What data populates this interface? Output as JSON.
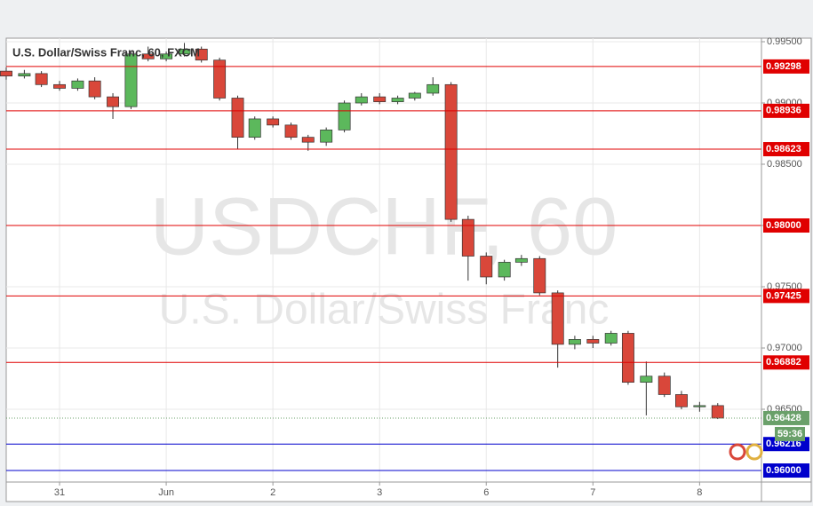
{
  "chart_data": {
    "type": "candlestick",
    "title": "U.S. Dollar/Swiss Franc, 60, FXCM",
    "watermark": "USDCHF, 60",
    "watermark_subtitle": "U.S. Dollar/Swiss Franc",
    "xlim": [
      -0.5,
      6.58
    ],
    "xticks": [
      {
        "value": 0,
        "label": "31"
      },
      {
        "value": 1,
        "label": "Jun"
      },
      {
        "value": 2,
        "label": "2"
      },
      {
        "value": 3,
        "label": "3"
      },
      {
        "value": 4,
        "label": "6"
      },
      {
        "value": 5,
        "label": "7"
      },
      {
        "value": 6,
        "label": "8"
      }
    ],
    "ylim": [
      0.95906,
      0.99529
    ],
    "yticks": [
      {
        "value": 0.995,
        "label": "0.99500"
      },
      {
        "value": 0.99,
        "label": "0.99000"
      },
      {
        "value": 0.985,
        "label": "0.98500"
      },
      {
        "value": 0.98,
        "label": "0.98000"
      },
      {
        "value": 0.975,
        "label": "0.97500"
      },
      {
        "value": 0.97,
        "label": "0.97000"
      },
      {
        "value": 0.965,
        "label": "0.96500"
      }
    ],
    "grid": true,
    "up_color": "#5cb85c",
    "down_color": "#d9473a",
    "x": [
      -0.5,
      -0.33,
      -0.17,
      0,
      0.17,
      0.33,
      0.5,
      0.67,
      0.83,
      1,
      1.17,
      1.33,
      1.5,
      1.67,
      1.83,
      2,
      2.17,
      2.33,
      2.5,
      2.67,
      2.83,
      3,
      3.17,
      3.33,
      3.5,
      3.67,
      3.83,
      4,
      4.17,
      4.33,
      4.5,
      4.67,
      4.83,
      5,
      5.17,
      5.33,
      5.5,
      5.67,
      5.83,
      6,
      6.17
    ],
    "open": [
      0.9926,
      0.9922,
      0.9924,
      0.9915,
      0.9912,
      0.9918,
      0.9905,
      0.9897,
      0.994,
      0.9936,
      0.994,
      0.9944,
      0.9935,
      0.9904,
      0.9872,
      0.9887,
      0.9882,
      0.9872,
      0.9868,
      0.9878,
      0.99,
      0.9905,
      0.9901,
      0.9904,
      0.9908,
      0.9915,
      0.9805,
      0.9775,
      0.9758,
      0.977,
      0.9773,
      0.9745,
      0.9703,
      0.9707,
      0.9704,
      0.9712,
      0.9672,
      0.9677,
      0.9662,
      0.9652,
      0.9653
    ],
    "high": [
      0.9929,
      0.9927,
      0.9926,
      0.9918,
      0.992,
      0.9921,
      0.9908,
      0.9942,
      0.9946,
      0.9942,
      0.9949,
      0.9946,
      0.9937,
      0.9906,
      0.9889,
      0.9889,
      0.9884,
      0.9874,
      0.988,
      0.9902,
      0.9908,
      0.9908,
      0.9906,
      0.9909,
      0.9921,
      0.9917,
      0.9808,
      0.9778,
      0.9772,
      0.9776,
      0.9775,
      0.9747,
      0.971,
      0.971,
      0.9714,
      0.9714,
      0.9689,
      0.968,
      0.9665,
      0.9656,
      0.9655
    ],
    "low": [
      0.9919,
      0.992,
      0.9913,
      0.991,
      0.991,
      0.9903,
      0.9887,
      0.9895,
      0.9934,
      0.9934,
      0.9938,
      0.9933,
      0.9902,
      0.9862,
      0.987,
      0.988,
      0.987,
      0.9861,
      0.9865,
      0.9876,
      0.9898,
      0.9899,
      0.9899,
      0.9902,
      0.9906,
      0.9803,
      0.9755,
      0.9752,
      0.9755,
      0.9767,
      0.9743,
      0.9684,
      0.9699,
      0.97,
      0.9702,
      0.967,
      0.9645,
      0.966,
      0.965,
      0.9648,
      0.9642
    ],
    "close": [
      0.9922,
      0.9924,
      0.9915,
      0.9912,
      0.9918,
      0.9905,
      0.9897,
      0.994,
      0.9936,
      0.994,
      0.9944,
      0.9935,
      0.9904,
      0.9872,
      0.9887,
      0.9882,
      0.9872,
      0.9868,
      0.9878,
      0.99,
      0.9905,
      0.9901,
      0.9904,
      0.9908,
      0.9915,
      0.9805,
      0.9775,
      0.9758,
      0.977,
      0.9773,
      0.9745,
      0.9703,
      0.9707,
      0.9704,
      0.9712,
      0.9672,
      0.9677,
      0.9662,
      0.9652,
      0.9653,
      0.96428
    ],
    "levels": [
      {
        "value": 0.99298,
        "label": "0.99298",
        "color": "#e00000"
      },
      {
        "value": 0.98936,
        "label": "0.98936",
        "color": "#e00000"
      },
      {
        "value": 0.98623,
        "label": "0.98623",
        "color": "#e00000"
      },
      {
        "value": 0.98,
        "label": "0.98000",
        "color": "#e00000"
      },
      {
        "value": 0.97425,
        "label": "0.97425",
        "color": "#e00000"
      },
      {
        "value": 0.96882,
        "label": "0.96882",
        "color": "#e00000"
      },
      {
        "value": 0.96216,
        "label": "0.96216",
        "color": "#0000cc"
      },
      {
        "value": 0.96,
        "label": "0.96000",
        "color": "#0000cc"
      }
    ],
    "current_price": {
      "value": 0.96428,
      "label": "0.96428",
      "color": "#6aa06a"
    },
    "countdown": "59:36"
  }
}
